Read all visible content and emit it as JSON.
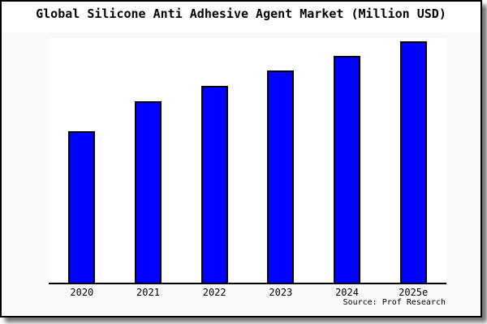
{
  "window": {
    "background": "#ffffff",
    "panel_background": "#fafafa",
    "header_background": "#ffffff",
    "border_color": "#000000",
    "shadow_color": "#8f8f8f"
  },
  "chart_data": {
    "type": "bar",
    "title": "Global Silicone Anti Adhesive Agent Market (Million USD)",
    "categories": [
      "2020",
      "2021",
      "2022",
      "2023",
      "2024",
      "2025e"
    ],
    "values": [
      62.8,
      75.2,
      81.5,
      87.9,
      94.0,
      100.0
    ],
    "value_scale_note": "no y-axis or data labels shown; values estimated as relative bar heights normalized to 2025e = 100",
    "ylim": [
      0,
      101.3
    ],
    "xlabel": "",
    "ylabel": "",
    "grid": false,
    "legend": false,
    "y_axis_shown": false,
    "bar_color": "#0000ff",
    "bar_border_color": "#000000",
    "axis_color": "#000000",
    "plot_background": "#ffffff",
    "source": "Source: Prof Research"
  }
}
